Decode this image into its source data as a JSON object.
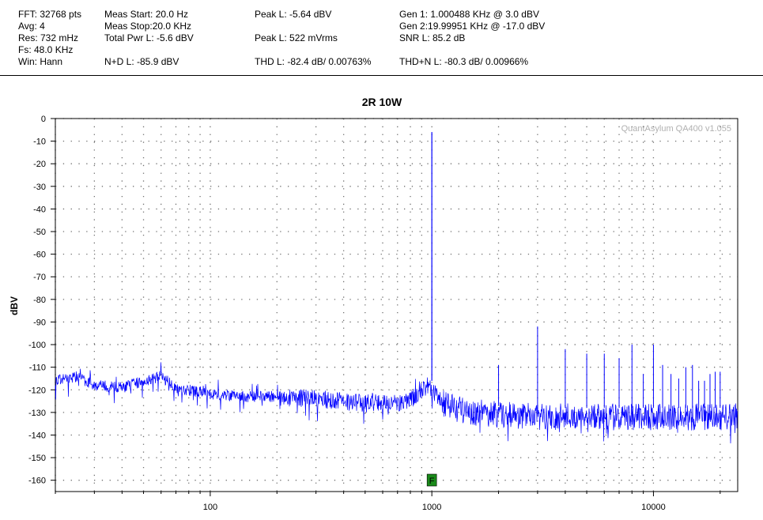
{
  "header": {
    "col1": [
      "FFT: 32768 pts",
      "Avg: 4",
      "Res: 732 mHz",
      "Fs: 48.0 KHz",
      "Win: Hann"
    ],
    "col2": [
      "Meas Start: 20.0 Hz",
      "Meas Stop:20.0 KHz",
      "Total Pwr L: -5.6 dBV",
      "N+D L: -85.9 dBV"
    ],
    "col3": [
      "Peak L: -5.64 dBV",
      "Peak L: 522 mVrms",
      "THD L: -82.4 dB/ 0.00763%"
    ],
    "col4": [
      "Gen 1: 1.000488 KHz @ 3.0  dBV",
      "Gen 2:19.99951 KHz @ -17.0  dBV",
      "SNR L: 85.2 dB",
      "THD+N L: -80.3 dB/ 0.00966%"
    ]
  },
  "chart_data": {
    "type": "line",
    "title": "2R 10W",
    "ylabel": "dBV",
    "xlabel": "",
    "watermark": "QuantAsylum QA400 v1.055",
    "marker_label": "F",
    "x_scale": "log",
    "xlim": [
      20,
      24000
    ],
    "ylim": [
      -165,
      0
    ],
    "x_ticks": [
      100,
      1000,
      10000
    ],
    "x_tick_labels": [
      "100",
      "1000",
      "10000"
    ],
    "y_ticks": [
      0,
      -10,
      -20,
      -30,
      -40,
      -50,
      -60,
      -70,
      -80,
      -90,
      -100,
      -110,
      -120,
      -130,
      -140,
      -150,
      -160
    ],
    "y_tick_labels": [
      "0",
      "-10",
      "-20",
      "-30",
      "-40",
      "-50",
      "-60",
      "-70",
      "-80",
      "-90",
      "-100",
      "-110",
      "-120",
      "-130",
      "-140",
      "-150",
      "-160"
    ],
    "grid": true,
    "line_color": "#0000ff",
    "marker_color": "#1a8a1a",
    "marker_x": 1000,
    "series": [
      {
        "noise_floor": [
          [
            20,
            -116
          ],
          [
            25,
            -114
          ],
          [
            30,
            -118
          ],
          [
            40,
            -119
          ],
          [
            50,
            -116
          ],
          [
            60,
            -114
          ],
          [
            70,
            -119
          ],
          [
            100,
            -122
          ],
          [
            150,
            -123
          ],
          [
            200,
            -123
          ],
          [
            300,
            -124
          ],
          [
            500,
            -126
          ],
          [
            700,
            -126
          ],
          [
            850,
            -123
          ],
          [
            950,
            -118
          ],
          [
            1000,
            -120
          ],
          [
            1050,
            -122
          ],
          [
            1150,
            -127
          ],
          [
            1500,
            -130
          ],
          [
            3000,
            -132
          ],
          [
            6000,
            -132
          ],
          [
            10000,
            -132
          ],
          [
            24000,
            -132
          ]
        ],
        "peaks": [
          {
            "x": 1000,
            "y": -6
          },
          {
            "x": 2000,
            "y": -109
          },
          {
            "x": 3000,
            "y": -92
          },
          {
            "x": 4000,
            "y": -102
          },
          {
            "x": 5000,
            "y": -104
          },
          {
            "x": 6000,
            "y": -104
          },
          {
            "x": 7000,
            "y": -106
          },
          {
            "x": 8000,
            "y": -100
          },
          {
            "x": 9000,
            "y": -113
          },
          {
            "x": 10000,
            "y": -100
          },
          {
            "x": 11000,
            "y": -109
          },
          {
            "x": 12000,
            "y": -113
          },
          {
            "x": 13000,
            "y": -115
          },
          {
            "x": 14000,
            "y": -110
          },
          {
            "x": 15000,
            "y": -109
          },
          {
            "x": 16000,
            "y": -116
          },
          {
            "x": 17000,
            "y": -116
          },
          {
            "x": 18000,
            "y": -113
          },
          {
            "x": 19000,
            "y": -112
          },
          {
            "x": 20000,
            "y": -112
          }
        ]
      }
    ]
  }
}
